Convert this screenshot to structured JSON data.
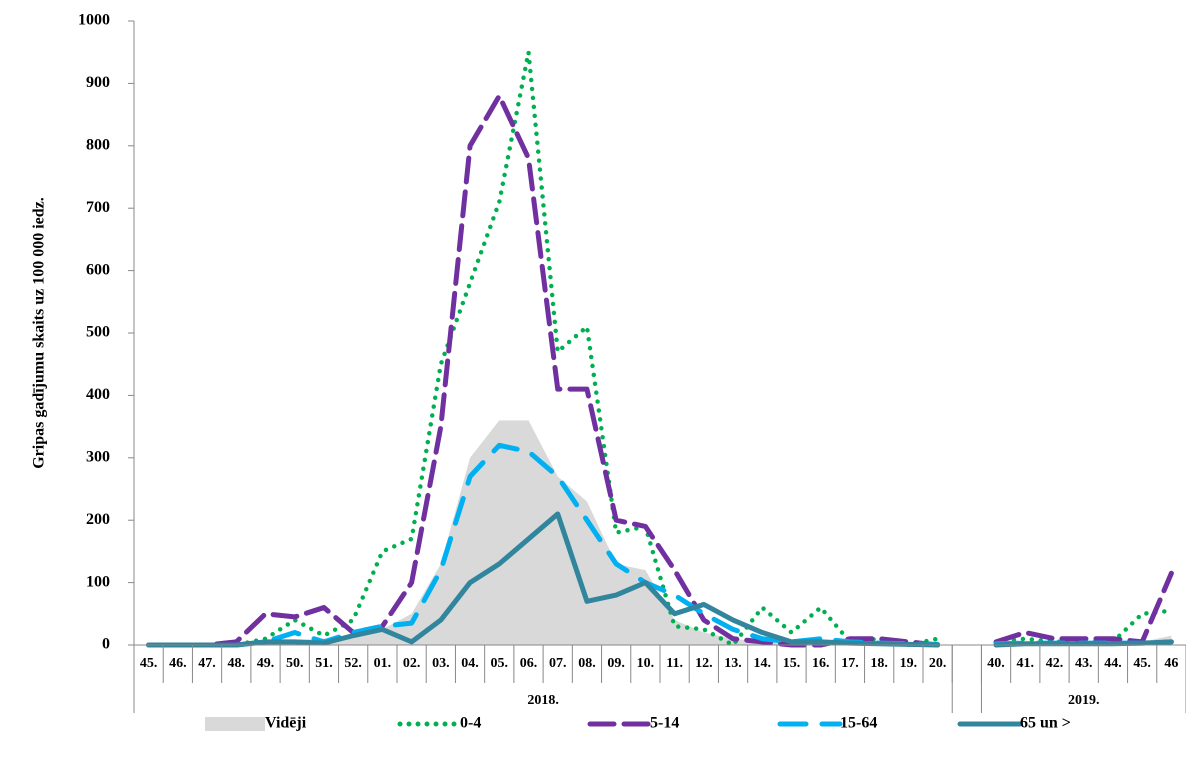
{
  "chart_data": {
    "type": "line",
    "y_label": "Gripas gadījumu skaits uz 100 000 iedz.",
    "categories": [
      "45.",
      "46.",
      "47.",
      "48.",
      "49.",
      "50.",
      "51.",
      "52.",
      "01.",
      "02.",
      "03.",
      "04.",
      "05.",
      "06.",
      "07.",
      "08.",
      "09.",
      "10.",
      "11.",
      "12.",
      "13.",
      "14.",
      "15.",
      "16.",
      "17.",
      "18.",
      "19.",
      "20.",
      null,
      "40.",
      "41.",
      "42.",
      "43.",
      "44.",
      "45.",
      "46"
    ],
    "groups": [
      {
        "label": "2018.",
        "from": 0,
        "to": 27
      },
      {
        "label": "2019.",
        "from": 29,
        "to": 35
      }
    ],
    "series": [
      {
        "name": "Vidēji",
        "style": "area",
        "color": "#d9d9d9",
        "values": [
          0,
          0,
          0,
          2,
          5,
          8,
          10,
          15,
          25,
          50,
          130,
          300,
          360,
          360,
          270,
          230,
          130,
          120,
          40,
          20,
          10,
          5,
          3,
          3,
          2,
          2,
          1,
          1,
          null,
          0,
          2,
          3,
          3,
          3,
          5,
          15
        ]
      },
      {
        "name": "0-4",
        "style": "dotted",
        "color": "#00b050",
        "values": [
          0,
          0,
          0,
          0,
          10,
          40,
          15,
          40,
          150,
          170,
          450,
          580,
          710,
          950,
          470,
          510,
          180,
          190,
          30,
          25,
          0,
          60,
          20,
          60,
          5,
          10,
          0,
          10,
          null,
          5,
          10,
          5,
          5,
          5,
          50,
          55
        ]
      },
      {
        "name": "5-14",
        "style": "dashed",
        "color": "#7030a0",
        "values": [
          0,
          0,
          0,
          5,
          50,
          45,
          60,
          20,
          30,
          100,
          350,
          800,
          880,
          780,
          410,
          410,
          200,
          190,
          120,
          40,
          10,
          5,
          0,
          0,
          10,
          10,
          5,
          0,
          null,
          5,
          20,
          10,
          10,
          10,
          5,
          115
        ]
      },
      {
        "name": "15-64",
        "style": "longdash",
        "color": "#00b0f0",
        "values": [
          0,
          0,
          0,
          0,
          5,
          20,
          5,
          20,
          30,
          35,
          120,
          270,
          320,
          310,
          270,
          200,
          130,
          100,
          80,
          50,
          25,
          10,
          5,
          10,
          5,
          3,
          2,
          1,
          null,
          2,
          3,
          3,
          3,
          3,
          3,
          5
        ]
      },
      {
        "name": "65 un >",
        "style": "solid",
        "color": "#31859c",
        "values": [
          0,
          0,
          0,
          0,
          5,
          5,
          3,
          15,
          25,
          5,
          40,
          100,
          130,
          170,
          210,
          70,
          80,
          100,
          50,
          65,
          40,
          20,
          5,
          5,
          3,
          2,
          1,
          0,
          null,
          0,
          2,
          2,
          2,
          2,
          3,
          5
        ]
      }
    ],
    "ylim": [
      0,
      1000
    ],
    "yticks": [
      0,
      100,
      200,
      300,
      400,
      500,
      600,
      700,
      800,
      900,
      1000
    ],
    "legend": "bottom"
  }
}
